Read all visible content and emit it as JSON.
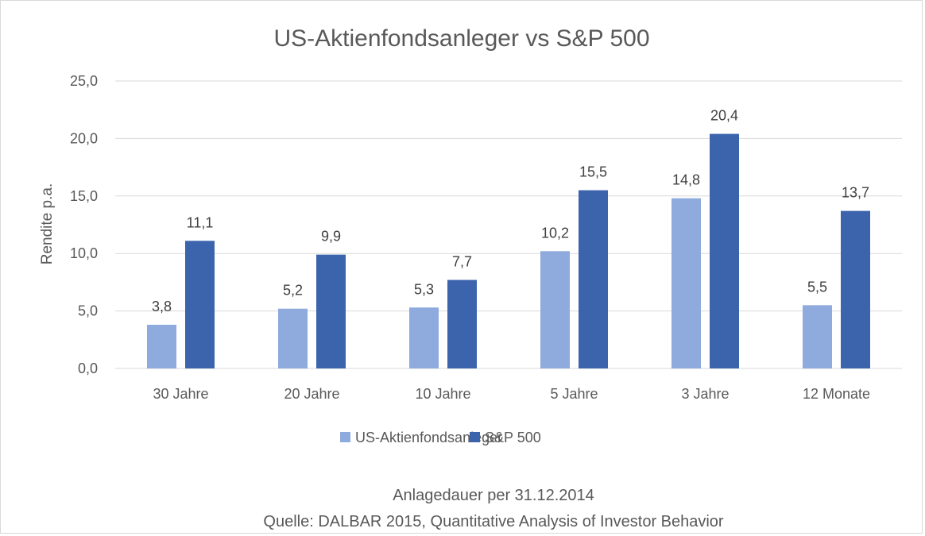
{
  "chart_data": {
    "type": "bar",
    "title": "US-Aktienfondsanleger vs S&P 500",
    "ylabel": "Rendite p.a.",
    "xlabel": "",
    "categories": [
      "30 Jahre",
      "20 Jahre",
      "10 Jahre",
      "5 Jahre",
      "3 Jahre",
      "12 Monate"
    ],
    "series": [
      {
        "name": "US-Aktienfondsanleger",
        "color": "#8faadc",
        "values": [
          3.8,
          5.2,
          5.3,
          10.2,
          14.8,
          5.5
        ],
        "labels": [
          "3,8",
          "5,2",
          "5,3",
          "10,2",
          "14,8",
          "5,5"
        ]
      },
      {
        "name": "S&P 500",
        "color": "#3b64ad",
        "values": [
          11.1,
          9.9,
          7.7,
          15.5,
          20.4,
          13.7
        ],
        "labels": [
          "11,1",
          "9,9",
          "7,7",
          "15,5",
          "20,4",
          "13,7"
        ]
      }
    ],
    "ylim": [
      0,
      25
    ],
    "yticks": [
      0,
      5,
      10,
      15,
      20,
      25
    ],
    "ytick_labels": [
      "0,0",
      "5,0",
      "10,0",
      "15,0",
      "20,0",
      "25,0"
    ],
    "grid": true,
    "legend_position": "bottom",
    "footnotes": [
      "Anlagedauer per 31.12.2014",
      "Quelle: DALBAR 2015, Quantitative Analysis of Investor Behavior"
    ]
  }
}
